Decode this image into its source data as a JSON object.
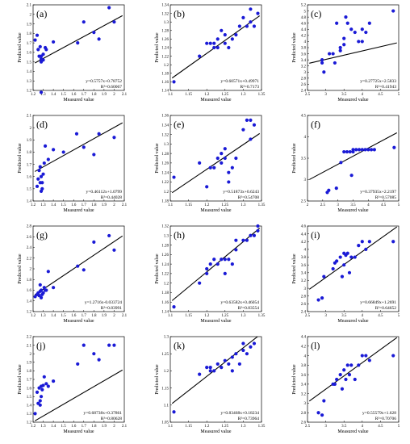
{
  "chart_data": [
    {
      "label": "(a)",
      "type": "scatter",
      "xlabel": "Measured value",
      "ylabel": "Predicted value",
      "xlim": [
        1.2,
        2.1
      ],
      "ylim": [
        1.2,
        2.1
      ],
      "xticks": [
        "1.2",
        "1.3",
        "1.4",
        "1.5",
        "1.6",
        "1.7",
        "1.8",
        "1.9",
        "2",
        "2.1"
      ],
      "yticks": [
        "1.2",
        "1.3",
        "1.4",
        "1.5",
        "1.6",
        "1.7",
        "1.8",
        "1.9",
        "2",
        "2.1"
      ],
      "fit": {
        "slope": 0.5757,
        "intercept": 0.78752
      },
      "equation": "y=0.5757x+0.78752",
      "r2": "R²=0.60067",
      "x": [
        1.22,
        1.24,
        1.25,
        1.26,
        1.27,
        1.28,
        1.3,
        1.3,
        1.32,
        1.33,
        1.28,
        1.28,
        1.4,
        1.64,
        1.7,
        1.8,
        1.85,
        1.95,
        2.0,
        1.28
      ],
      "y": [
        1.73,
        1.78,
        1.63,
        1.56,
        1.66,
        1.53,
        1.58,
        1.52,
        1.65,
        1.63,
        1.56,
        1.5,
        1.71,
        1.7,
        1.92,
        1.81,
        1.74,
        2.07,
        1.92,
        1.18
      ]
    },
    {
      "label": "(b)",
      "type": "scatter",
      "xlabel": "Measured value",
      "ylabel": "Predicted value",
      "xlim": [
        1.1,
        1.35
      ],
      "ylim": [
        1.14,
        1.34
      ],
      "xticks": [
        "1.1",
        "1.15",
        "1.2",
        "1.25",
        "1.3",
        "1.35"
      ],
      "yticks": [
        "1.14",
        "1.16",
        "1.18",
        "1.2",
        "1.22",
        "1.24",
        "1.26",
        "1.28",
        "1.3",
        "1.32",
        "1.34"
      ],
      "fit": {
        "slope": 0.60571,
        "intercept": 0.49971
      },
      "equation": "y=0.60571x+0.49971",
      "r2": "R²=0.7173",
      "x": [
        1.11,
        1.18,
        1.2,
        1.21,
        1.22,
        1.22,
        1.23,
        1.23,
        1.24,
        1.25,
        1.25,
        1.26,
        1.27,
        1.28,
        1.29,
        1.3,
        1.31,
        1.32,
        1.32,
        1.33,
        1.34
      ],
      "y": [
        1.16,
        1.22,
        1.25,
        1.25,
        1.24,
        1.25,
        1.26,
        1.24,
        1.28,
        1.25,
        1.27,
        1.24,
        1.26,
        1.27,
        1.29,
        1.31,
        1.29,
        1.3,
        1.33,
        1.29,
        1.32
      ]
    },
    {
      "label": "(c)",
      "type": "scatter",
      "xlabel": "Measured value",
      "ylabel": "Predicted value",
      "xlim": [
        2.5,
        5
      ],
      "ylim": [
        2.4,
        5.2
      ],
      "xticks": [
        "2.5",
        "3",
        "3.5",
        "4",
        "4.5",
        "5"
      ],
      "yticks": [
        "2.4",
        "2.6",
        "2.8",
        "3",
        "3.2",
        "3.4",
        "3.6",
        "3.8",
        "4",
        "4.2",
        "4.4",
        "4.6",
        "4.8",
        "5",
        "5.2"
      ],
      "fit": {
        "slope": 0.27725,
        "intercept": 2.5833
      },
      "equation": "y=0.27725x+2.5833",
      "r2": "R²=0.41943",
      "x": [
        2.9,
        2.9,
        2.95,
        3.1,
        3.2,
        3.25,
        3.3,
        3.4,
        3.4,
        3.5,
        3.5,
        3.55,
        3.6,
        3.7,
        3.8,
        3.9,
        4.0,
        4.0,
        4.1,
        4.2,
        4.85
      ],
      "y": [
        3.3,
        3.4,
        3.0,
        3.6,
        3.6,
        3.3,
        4.6,
        3.7,
        3.8,
        3.9,
        4.1,
        4.8,
        4.6,
        4.4,
        4.3,
        4.0,
        4.0,
        4.4,
        4.3,
        4.6,
        5.0
      ]
    },
    {
      "label": "(d)",
      "type": "scatter",
      "xlabel": "Measured value",
      "ylabel": "Predicted value",
      "xlim": [
        1.2,
        2.1
      ],
      "ylim": [
        1.4,
        2.1
      ],
      "xticks": [
        "1.2",
        "1.3",
        "1.4",
        "1.5",
        "1.6",
        "1.7",
        "1.8",
        "1.9",
        "2",
        "2.1"
      ],
      "yticks": [
        "1.4",
        "1.5",
        "1.6",
        "1.7",
        "1.8",
        "1.9",
        "2",
        "2.1"
      ],
      "fit": {
        "slope": 0.46112,
        "intercept": 1.0799
      },
      "equation": "y=0.46112x+1.0799",
      "r2": "R²=0.44028",
      "x": [
        1.24,
        1.25,
        1.26,
        1.27,
        1.28,
        1.28,
        1.29,
        1.3,
        1.31,
        1.32,
        1.35,
        1.4,
        1.5,
        1.63,
        1.7,
        1.8,
        1.85,
        2.0,
        1.27,
        1.29
      ],
      "y": [
        1.52,
        1.58,
        1.65,
        1.55,
        1.6,
        1.48,
        1.5,
        1.62,
        1.71,
        1.85,
        1.74,
        1.82,
        1.8,
        1.95,
        1.84,
        1.78,
        1.95,
        1.92,
        1.68,
        1.55
      ]
    },
    {
      "label": "(e)",
      "type": "scatter",
      "xlabel": "Measured value",
      "ylabel": "Predicted value",
      "xlim": [
        1.1,
        1.35
      ],
      "ylim": [
        1.18,
        1.36
      ],
      "xticks": [
        "1.1",
        "1.15",
        "1.2",
        "1.25",
        "1.3",
        "1.35"
      ],
      "yticks": [
        "1.18",
        "1.2",
        "1.22",
        "1.24",
        "1.26",
        "1.28",
        "1.3",
        "1.32",
        "1.34",
        "1.36"
      ],
      "fit": {
        "slope": 0.51873,
        "intercept": 0.6243
      },
      "equation": "y=0.51873x+0.6243",
      "r2": "R²=0.54708",
      "x": [
        1.11,
        1.18,
        1.2,
        1.21,
        1.22,
        1.23,
        1.24,
        1.24,
        1.25,
        1.25,
        1.26,
        1.26,
        1.27,
        1.28,
        1.3,
        1.31,
        1.32,
        1.32,
        1.33
      ],
      "y": [
        1.23,
        1.26,
        1.21,
        1.25,
        1.25,
        1.27,
        1.26,
        1.28,
        1.27,
        1.29,
        1.22,
        1.24,
        1.25,
        1.27,
        1.33,
        1.35,
        1.31,
        1.35,
        1.34
      ]
    },
    {
      "label": "(f)",
      "type": "scatter",
      "xlabel": "Measured value",
      "ylabel": "Predicted value",
      "xlim": [
        2,
        5
      ],
      "ylim": [
        2.5,
        4.5
      ],
      "xticks": [
        "2",
        "2.5",
        "3",
        "3.5",
        "4",
        "4.5",
        "5"
      ],
      "yticks": [
        "2.5",
        "3",
        "3.5",
        "4",
        "4.5"
      ],
      "fit": {
        "slope": 0.37935,
        "intercept": 2.2197
      },
      "equation": "y=0.37935x+2.2197",
      "r2": "R²=0.57085",
      "x": [
        2.65,
        2.7,
        2.95,
        3.1,
        3.2,
        3.3,
        3.4,
        3.5,
        3.5,
        3.6,
        3.7,
        3.8,
        3.9,
        4.0,
        4.1,
        4.2,
        4.85,
        3.45
      ],
      "y": [
        2.7,
        2.75,
        2.8,
        3.4,
        3.65,
        3.65,
        3.65,
        3.65,
        3.7,
        3.7,
        3.7,
        3.7,
        3.7,
        3.7,
        3.7,
        3.7,
        3.75,
        3.1
      ]
    },
    {
      "label": "(g)",
      "type": "scatter",
      "xlabel": "Measured value",
      "ylabel": "Predicted value",
      "xlim": [
        1.2,
        2.1
      ],
      "ylim": [
        1.2,
        2.8
      ],
      "xticks": [
        "1.2",
        "1.3",
        "1.4",
        "1.5",
        "1.6",
        "1.7",
        "1.8",
        "1.9",
        "2",
        "2.1"
      ],
      "yticks": [
        "1.2",
        "1.4",
        "1.6",
        "1.8",
        "2",
        "2.2",
        "2.4",
        "2.6",
        "2.8"
      ],
      "fit": {
        "slope": 1.2716,
        "intercept": -0.033724
      },
      "equation": "y=1.2716x-0.033724",
      "r2": "R²=0.83991",
      "x": [
        1.22,
        1.24,
        1.25,
        1.26,
        1.27,
        1.28,
        1.28,
        1.29,
        1.3,
        1.31,
        1.33,
        1.35,
        1.4,
        1.64,
        1.7,
        1.8,
        1.95,
        2.0,
        1.27,
        1.32
      ],
      "y": [
        1.48,
        1.52,
        1.55,
        1.5,
        1.58,
        1.6,
        1.46,
        1.52,
        1.55,
        1.65,
        1.6,
        1.95,
        1.65,
        2.05,
        1.98,
        2.5,
        2.62,
        2.35,
        1.7,
        1.6
      ]
    },
    {
      "label": "(h)",
      "type": "scatter",
      "xlabel": "Measured value",
      "ylabel": "Predicted value",
      "xlim": [
        1.1,
        1.35
      ],
      "ylim": [
        1.14,
        1.32
      ],
      "xticks": [
        "1.1",
        "1.15",
        "1.2",
        "1.25",
        "1.3",
        "1.35"
      ],
      "yticks": [
        "1.14",
        "1.16",
        "1.18",
        "1.2",
        "1.22",
        "1.24",
        "1.26",
        "1.28",
        "1.3",
        "1.32"
      ],
      "fit": {
        "slope": 0.63582,
        "intercept": 0.46054
      },
      "equation": "y=0.63582x+0.46054",
      "r2": "R²=0.83554",
      "x": [
        1.11,
        1.18,
        1.2,
        1.2,
        1.21,
        1.22,
        1.23,
        1.24,
        1.25,
        1.25,
        1.26,
        1.27,
        1.28,
        1.28,
        1.3,
        1.31,
        1.32,
        1.33,
        1.34,
        1.34
      ],
      "y": [
        1.15,
        1.2,
        1.22,
        1.23,
        1.24,
        1.25,
        1.24,
        1.25,
        1.22,
        1.25,
        1.25,
        1.24,
        1.29,
        1.27,
        1.29,
        1.29,
        1.3,
        1.3,
        1.31,
        1.32
      ]
    },
    {
      "label": "(i)",
      "type": "scatter",
      "xlabel": "Measured value",
      "ylabel": "Predicted value",
      "xlim": [
        2.5,
        5
      ],
      "ylim": [
        2.4,
        4.6
      ],
      "xticks": [
        "2.5",
        "3",
        "3.5",
        "4",
        "4.5",
        "5"
      ],
      "yticks": [
        "2.4",
        "2.6",
        "2.8",
        "3",
        "3.2",
        "3.4",
        "3.6",
        "3.8",
        "4",
        "4.2",
        "4.4",
        "4.6"
      ],
      "fit": {
        "slope": 0.66849,
        "intercept": 1.2691
      },
      "equation": "y=0.66849x+1.2691",
      "r2": "R²=0.64652",
      "x": [
        2.8,
        2.9,
        2.95,
        3.2,
        3.25,
        3.3,
        3.4,
        3.45,
        3.5,
        3.55,
        3.6,
        3.65,
        3.7,
        3.8,
        3.9,
        4.0,
        4.1,
        4.2,
        4.85,
        3.5
      ],
      "y": [
        2.7,
        2.75,
        3.3,
        3.5,
        3.65,
        3.7,
        3.8,
        3.3,
        3.9,
        3.85,
        3.9,
        3.4,
        3.8,
        3.8,
        4.1,
        4.2,
        4.0,
        4.2,
        4.2,
        3.6
      ]
    },
    {
      "label": "(j)",
      "type": "scatter",
      "xlabel": "Measured value",
      "ylabel": "Predicted value",
      "xlim": [
        1.2,
        2.1
      ],
      "ylim": [
        1.2,
        2.2
      ],
      "xticks": [
        "1.2",
        "1.3",
        "1.4",
        "1.5",
        "1.6",
        "1.7",
        "1.8",
        "1.9",
        "2",
        "2.1"
      ],
      "yticks": [
        "1.2",
        "1.3",
        "1.4",
        "1.5",
        "1.6",
        "1.7",
        "1.8",
        "1.9",
        "2",
        "2.1",
        "2.2"
      ],
      "fit": {
        "slope": 0.68738,
        "intercept": 0.37861
      },
      "equation": "y=0.68738x+0.37861",
      "r2": "R²=0.80628",
      "x": [
        1.22,
        1.24,
        1.25,
        1.26,
        1.27,
        1.27,
        1.28,
        1.29,
        1.3,
        1.31,
        1.33,
        1.35,
        1.4,
        1.64,
        1.7,
        1.8,
        1.85,
        1.95,
        2.0,
        1.28
      ],
      "y": [
        1.3,
        1.55,
        1.42,
        1.6,
        1.4,
        1.45,
        1.62,
        1.58,
        1.63,
        1.73,
        1.65,
        1.62,
        1.68,
        1.88,
        2.1,
        2.0,
        1.93,
        2.1,
        2.1,
        1.5
      ]
    },
    {
      "label": "(k)",
      "type": "scatter",
      "xlabel": "Measured value",
      "ylabel": "Predicted value",
      "xlim": [
        1.1,
        1.35
      ],
      "ylim": [
        1.05,
        1.3
      ],
      "xticks": [
        "1.1",
        "1.15",
        "1.2",
        "1.25",
        "1.3",
        "1.35"
      ],
      "yticks": [
        "1.05",
        "1.1",
        "1.15",
        "1.2",
        "1.25",
        "1.3"
      ],
      "fit": {
        "slope": 0.83468,
        "intercept": 0.18234
      },
      "equation": "y=0.83468x+0.18234",
      "r2": "R²=0.73964",
      "x": [
        1.11,
        1.18,
        1.2,
        1.21,
        1.21,
        1.22,
        1.23,
        1.24,
        1.25,
        1.26,
        1.27,
        1.27,
        1.28,
        1.29,
        1.3,
        1.3,
        1.31,
        1.32,
        1.33
      ],
      "y": [
        1.08,
        1.19,
        1.21,
        1.2,
        1.21,
        1.2,
        1.22,
        1.21,
        1.23,
        1.22,
        1.24,
        1.2,
        1.25,
        1.22,
        1.26,
        1.28,
        1.25,
        1.27,
        1.28
      ]
    },
    {
      "label": "(l)",
      "type": "scatter",
      "xlabel": "Measured value",
      "ylabel": "Predicted value",
      "xlim": [
        2.5,
        5
      ],
      "ylim": [
        2.6,
        4.4
      ],
      "xticks": [
        "2.5",
        "3",
        "3.5",
        "4",
        "4.5",
        "5"
      ],
      "yticks": [
        "2.6",
        "2.8",
        "3",
        "3.2",
        "3.4",
        "3.6",
        "3.8",
        "4",
        "4.2",
        "4.4"
      ],
      "fit": {
        "slope": 0.55579,
        "intercept": 1.628
      },
      "equation": "y=0.55579x+1.628",
      "r2": "R²=0.70706",
      "x": [
        2.8,
        2.9,
        2.95,
        3.2,
        3.25,
        3.3,
        3.4,
        3.5,
        3.55,
        3.6,
        3.65,
        3.7,
        3.8,
        3.9,
        4.0,
        4.1,
        4.2,
        4.85,
        3.45
      ],
      "y": [
        2.8,
        2.75,
        3.05,
        3.4,
        3.4,
        3.5,
        3.6,
        3.7,
        3.5,
        3.8,
        3.6,
        3.8,
        3.5,
        3.8,
        4.0,
        4.0,
        3.9,
        4.0,
        3.3
      ]
    }
  ]
}
